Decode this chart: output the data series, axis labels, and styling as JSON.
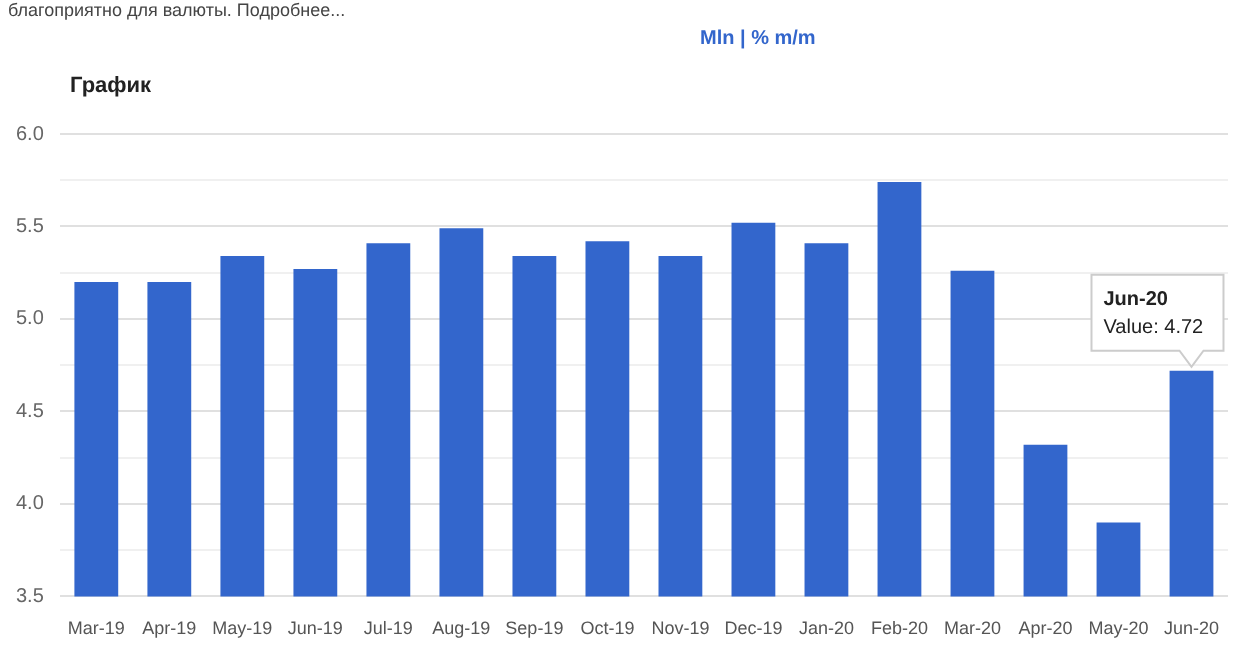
{
  "chart_data": {
    "type": "bar",
    "title": "График",
    "categories": [
      "Mar-19",
      "Apr-19",
      "May-19",
      "Jun-19",
      "Jul-19",
      "Aug-19",
      "Sep-19",
      "Oct-19",
      "Nov-19",
      "Dec-19",
      "Jan-20",
      "Feb-20",
      "Mar-20",
      "Apr-20",
      "May-20",
      "Jun-20"
    ],
    "values": [
      5.2,
      5.2,
      5.34,
      5.27,
      5.41,
      5.49,
      5.34,
      5.42,
      5.34,
      5.52,
      5.41,
      5.74,
      5.26,
      4.32,
      3.9,
      4.72
    ],
    "color": "#3366cc",
    "ylim": [
      3.5,
      6.0
    ],
    "yticks": [
      3.5,
      {
        "value": 3.75,
        "label": null
      },
      {
        "value": 4,
        "label": "4.0"
      },
      {
        "value": 4.25,
        "label": null
      },
      4.5,
      {
        "value": 4.75,
        "label": null
      },
      {
        "value": 5,
        "label": "5.0"
      },
      {
        "value": 5.25,
        "label": null
      },
      5.5,
      {
        "value": 5.75,
        "label": null
      },
      {
        "value": 6,
        "label": "6.0"
      }
    ],
    "grid": "y",
    "annotations": [
      "благоприятно для валюты. Подробнее...",
      "Mln | % m/m",
      {
        "text": "Jun-20\nValue: 4.72",
        "x": "Jun-20",
        "y": 4.72
      }
    ]
  }
}
